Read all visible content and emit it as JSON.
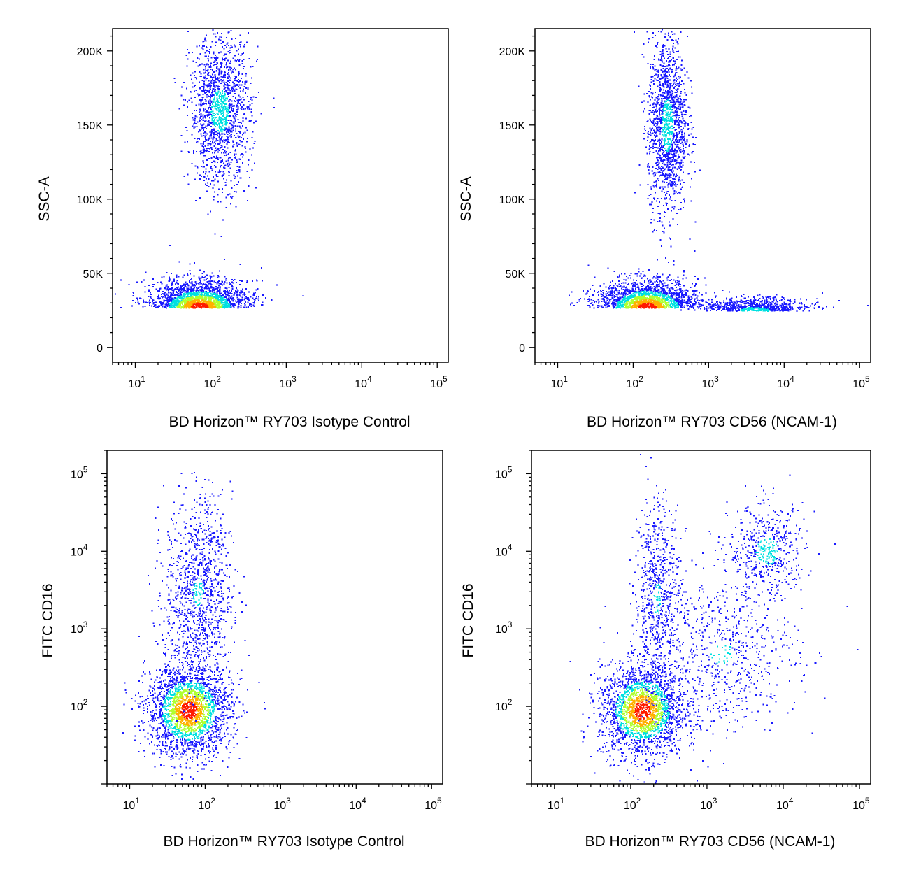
{
  "chart_data": [
    {
      "type": "scatter",
      "title": "",
      "xlabel": "BD Horizon™ RY703 Isotype Control",
      "ylabel": "SSC-A",
      "x_scale": "log",
      "xlim": [
        5,
        140000
      ],
      "ylim": [
        -10000,
        215000
      ],
      "x_tick_labels": [
        "10^1",
        "10^2",
        "10^3",
        "10^4",
        "10^5"
      ],
      "y_tick_labels": [
        "0",
        "50K",
        "100K",
        "150K",
        "200K"
      ],
      "populations": [
        {
          "name": "",
          "x_center": 70,
          "x_spread_decades": 0.32,
          "y_center": 27000,
          "y_spread": 9000,
          "y_floor": 20000,
          "count": 1700,
          "peak_density": "high"
        },
        {
          "name": "",
          "x_center": 130,
          "x_spread_decades": 0.2,
          "y_center": 160000,
          "y_spread": 25000,
          "count": 1500,
          "peak_density": "medium"
        }
      ]
    },
    {
      "type": "scatter",
      "title": "",
      "xlabel": "BD Horizon™ RY703 CD56 (NCAM-1)",
      "ylabel": "SSC-A",
      "x_scale": "log",
      "xlim": [
        5,
        140000
      ],
      "ylim": [
        -10000,
        215000
      ],
      "x_tick_labels": [
        "10^1",
        "10^2",
        "10^3",
        "10^4",
        "10^5"
      ],
      "y_tick_labels": [
        "0",
        "50K",
        "100K",
        "150K",
        "200K"
      ],
      "populations": [
        {
          "name": "",
          "x_center": 150,
          "x_spread_decades": 0.33,
          "y_center": 27000,
          "y_spread": 9000,
          "y_floor": 20000,
          "count": 1600,
          "peak_density": "high"
        },
        {
          "name": "",
          "x_center": 280,
          "x_spread_decades": 0.13,
          "y_center": 150000,
          "y_spread": 30000,
          "count": 1500,
          "peak_density": "medium"
        },
        {
          "name": "",
          "x_center": 4000,
          "x_spread_decades": 0.35,
          "y_center": 25000,
          "y_spread": 4000,
          "y_floor": 20000,
          "count": 700,
          "peak_density": "medium"
        }
      ]
    },
    {
      "type": "scatter",
      "title": "",
      "xlabel": "BD Horizon™ RY703 Isotype Control",
      "ylabel": "FITC  CD16",
      "x_scale": "log",
      "y_scale": "log",
      "xlim": [
        5,
        140000
      ],
      "ylim": [
        10,
        200000
      ],
      "x_tick_labels": [
        "10^1",
        "10^2",
        "10^3",
        "10^4",
        "10^5"
      ],
      "y_tick_labels": [
        "10^2",
        "10^3",
        "10^4",
        "10^5"
      ],
      "populations": [
        {
          "name": "",
          "x_center": 60,
          "x_spread_decades": 0.28,
          "y_center": 90,
          "y_spread_decades": 0.3,
          "count": 2200,
          "peak_density": "high"
        },
        {
          "name": "",
          "x_center": 80,
          "x_spread_decades": 0.22,
          "y_center": 3000,
          "y_spread_decades": 0.6,
          "count": 1100,
          "peak_density": "low"
        }
      ]
    },
    {
      "type": "scatter",
      "title": "",
      "xlabel": "BD Horizon™ RY703 CD56 (NCAM-1)",
      "ylabel": "FITC  CD16",
      "x_scale": "log",
      "y_scale": "log",
      "xlim": [
        5,
        140000
      ],
      "ylim": [
        10,
        200000
      ],
      "x_tick_labels": [
        "10^1",
        "10^2",
        "10^3",
        "10^4",
        "10^5"
      ],
      "y_tick_labels": [
        "10^2",
        "10^3",
        "10^4",
        "10^5"
      ],
      "populations": [
        {
          "name": "",
          "x_center": 140,
          "x_spread_decades": 0.28,
          "y_center": 90,
          "y_spread_decades": 0.3,
          "count": 2000,
          "peak_density": "high"
        },
        {
          "name": "",
          "x_center": 220,
          "x_spread_decades": 0.15,
          "y_center": 2500,
          "y_spread_decades": 0.65,
          "count": 700,
          "peak_density": "low"
        },
        {
          "name": "",
          "x_center": 6000,
          "x_spread_decades": 0.25,
          "y_center": 10000,
          "y_spread_decades": 0.3,
          "count": 500,
          "peak_density": "medium"
        },
        {
          "name": "",
          "x_center": 1500,
          "x_spread_decades": 0.5,
          "y_center": 500,
          "y_spread_decades": 0.5,
          "count": 700,
          "peak_density": "low"
        }
      ]
    }
  ],
  "colors": {
    "density_low": "#1a1aff",
    "density_medium": "#00e0e0",
    "density_high_1": "#b0ff30",
    "density_high_2": "#ffb000",
    "density_peak": "#ff1a00"
  }
}
